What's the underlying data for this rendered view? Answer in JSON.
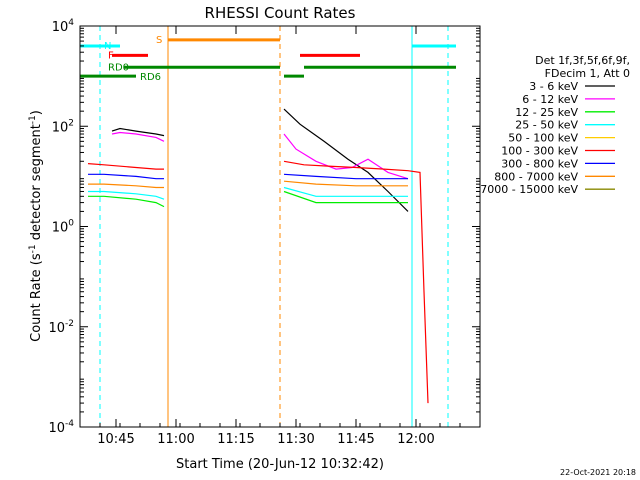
{
  "chart_data": {
    "type": "line",
    "title": "RHESSI Count Rates",
    "xlabel": "Start Time (20-Jun-12 10:32:42)",
    "ylabel_main": "Count Rate (s",
    "ylabel_sup1": "-1",
    "ylabel_mid": " detector segment",
    "ylabel_sup2": "-1",
    "ylabel_end": ")",
    "y_scale": "log",
    "ylim": [
      0.0001,
      10000
    ],
    "xlim": [
      "10:36",
      "12:16"
    ],
    "x_ticks": [
      "10:45",
      "11:00",
      "11:15",
      "11:30",
      "11:45",
      "12:00"
    ],
    "y_ticks": [
      {
        "base": "10",
        "exp": "4",
        "value": 10000
      },
      {
        "base": "10",
        "exp": "2",
        "value": 100
      },
      {
        "base": "10",
        "exp": "0",
        "value": 1
      },
      {
        "base": "10",
        "exp": "-2",
        "value": 0.01
      },
      {
        "base": "10",
        "exp": "-4",
        "value": 0.0001
      }
    ],
    "legend": {
      "header_1": "Det 1f,3f,5f,6f,9f,",
      "header_2": "FDecim 1, Att 0",
      "placement": "right",
      "entries": [
        {
          "label": "3 - 6 keV",
          "color": "#000000"
        },
        {
          "label": "6 - 12 keV",
          "color": "#ff00ff"
        },
        {
          "label": "12 - 25 keV",
          "color": "#00ee00"
        },
        {
          "label": "25 - 50 keV",
          "color": "#00ffff"
        },
        {
          "label": "50 - 100 keV",
          "color": "#ffcc00"
        },
        {
          "label": "100 - 300 keV",
          "color": "#ff0000"
        },
        {
          "label": "300 - 800 keV",
          "color": "#0000ff"
        },
        {
          "label": "800 - 7000 keV",
          "color": "#ff8800"
        },
        {
          "label": "7000 - 15000 keV",
          "color": "#888800"
        }
      ]
    },
    "vertical_markers": [
      {
        "time": "10:36",
        "color": "#00ffff",
        "style": "solid"
      },
      {
        "time": "10:41",
        "color": "#00ffff",
        "style": "dashed"
      },
      {
        "time": "10:58",
        "color": "#ff8800",
        "style": "solid"
      },
      {
        "time": "11:26",
        "color": "#ff8800",
        "style": "dashed"
      },
      {
        "time": "11:59",
        "color": "#00ffff",
        "style": "solid"
      },
      {
        "time": "12:08",
        "color": "#00ffff",
        "style": "dashed"
      }
    ],
    "flag_bars": [
      {
        "start": "10:36",
        "end": "10:46",
        "level": 4000,
        "color": "#00ffff"
      },
      {
        "start": "10:44",
        "end": "10:53",
        "level": 2600,
        "color": "#ff0000"
      },
      {
        "start": "10:47",
        "end": "11:26",
        "level": 1500,
        "color": "#008800"
      },
      {
        "start": "10:36",
        "end": "10:50",
        "level": 1000,
        "color": "#008800"
      },
      {
        "start": "10:58",
        "end": "11:26",
        "level": 5300,
        "color": "#ff8800"
      },
      {
        "start": "11:31",
        "end": "11:46",
        "level": 2600,
        "color": "#ff0000"
      },
      {
        "start": "11:27",
        "end": "11:32",
        "level": 1000,
        "color": "#008800"
      },
      {
        "start": "11:32",
        "end": "12:10",
        "level": 1500,
        "color": "#008800"
      },
      {
        "start": "11:59",
        "end": "12:10",
        "level": 4000,
        "color": "#00ffff"
      }
    ],
    "flag_labels": [
      {
        "text": "N",
        "time": "10:42",
        "level": 4200,
        "color": "#00ffff"
      },
      {
        "text": "F",
        "time": "10:43",
        "level": 2700,
        "color": "#ff0000"
      },
      {
        "text": "RD0",
        "time": "10:43",
        "level": 1550,
        "color": "#008800"
      },
      {
        "text": "RD6",
        "time": "10:51",
        "level": 1000,
        "color": "#008800"
      },
      {
        "text": "S",
        "time": "10:55",
        "level": 5500,
        "color": "#ff8800"
      }
    ],
    "series": [
      {
        "name": "3 - 6 keV",
        "color": "#000000",
        "segments": [
          {
            "t": [
              "10:44",
              "10:46",
              "10:50",
              "10:55",
              "10:57"
            ],
            "v": [
              80,
              90,
              80,
              70,
              65
            ]
          },
          {
            "t": [
              "11:27",
              "11:31",
              "11:37",
              "11:43",
              "11:48",
              "11:53",
              "11:58"
            ],
            "v": [
              220,
              110,
              50,
              22,
              12,
              5,
              2
            ]
          }
        ]
      },
      {
        "name": "6 - 12 keV",
        "color": "#ff00ff",
        "segments": [
          {
            "t": [
              "10:44",
              "10:46",
              "10:50",
              "10:55",
              "10:57"
            ],
            "v": [
              70,
              75,
              70,
              60,
              50
            ]
          },
          {
            "t": [
              "11:27",
              "11:30",
              "11:35",
              "11:40",
              "11:44",
              "11:48",
              "11:53",
              "11:58"
            ],
            "v": [
              70,
              35,
              20,
              14,
              15,
              22,
              12,
              9
            ]
          }
        ]
      },
      {
        "name": "12 - 25 keV",
        "color": "#00ee00",
        "segments": [
          {
            "t": [
              "10:38",
              "10:42",
              "10:50",
              "10:55",
              "10:57"
            ],
            "v": [
              4,
              4,
              3.5,
              3,
              2.5
            ]
          },
          {
            "t": [
              "11:27",
              "11:35",
              "11:45",
              "11:58"
            ],
            "v": [
              5,
              3,
              3,
              3
            ]
          }
        ]
      },
      {
        "name": "25 - 50 keV",
        "color": "#00ffff",
        "segments": [
          {
            "t": [
              "10:38",
              "10:42",
              "10:50",
              "10:55",
              "10:57"
            ],
            "v": [
              5,
              5,
              4.5,
              4,
              3.5
            ]
          },
          {
            "t": [
              "11:27",
              "11:35",
              "11:45",
              "11:58"
            ],
            "v": [
              6,
              4,
              4,
              4
            ]
          }
        ]
      },
      {
        "name": "50 - 100 keV",
        "color": "#ffcc00",
        "segments": [
          {
            "t": [
              "10:38",
              "10:57"
            ],
            "v": [
              0,
              0
            ]
          }
        ]
      },
      {
        "name": "100 - 300 keV",
        "color": "#ff0000",
        "segments": [
          {
            "t": [
              "10:38",
              "10:42",
              "10:50",
              "10:55",
              "10:57"
            ],
            "v": [
              18,
              17,
              15,
              14,
              14
            ]
          },
          {
            "t": [
              "11:27",
              "11:32",
              "11:38",
              "11:45",
              "11:52",
              "11:58",
              "12:01",
              "12:02",
              "12:03"
            ],
            "v": [
              20,
              17,
              16,
              15,
              14,
              13,
              12,
              0.05,
              0.0003
            ]
          }
        ]
      },
      {
        "name": "300 - 800 keV",
        "color": "#0000ff",
        "segments": [
          {
            "t": [
              "10:38",
              "10:42",
              "10:50",
              "10:55",
              "10:57"
            ],
            "v": [
              11,
              11,
              10,
              9,
              9
            ]
          },
          {
            "t": [
              "11:27",
              "11:35",
              "11:45",
              "11:58"
            ],
            "v": [
              11,
              10,
              9,
              9
            ]
          }
        ]
      },
      {
        "name": "800 - 7000 keV",
        "color": "#ff8800",
        "segments": [
          {
            "t": [
              "10:38",
              "10:42",
              "10:50",
              "10:55",
              "10:57"
            ],
            "v": [
              7,
              7,
              6.5,
              6,
              6
            ]
          },
          {
            "t": [
              "11:27",
              "11:35",
              "11:45",
              "11:58"
            ],
            "v": [
              8,
              7,
              6.5,
              6.5
            ]
          }
        ]
      },
      {
        "name": "7000 - 15000 keV",
        "color": "#888800",
        "segments": []
      }
    ]
  },
  "footer": {
    "timestamp": "22-Oct-2021 20:18"
  }
}
